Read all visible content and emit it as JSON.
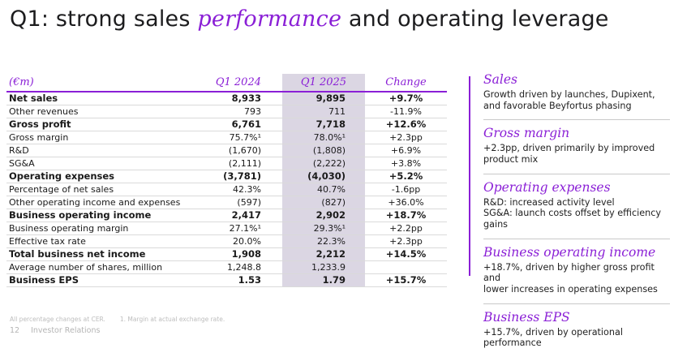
{
  "title": {
    "prefix": "Q1: strong sales ",
    "accent": "performance",
    "suffix": " and operating leverage"
  },
  "table": {
    "unit_label": "(€m)",
    "columns": [
      "Q1 2024",
      "Q1 2025",
      "Change"
    ],
    "rows": [
      {
        "label": "Net sales",
        "q1_2024": "8,933",
        "q1_2025": "9,895",
        "change": "+9.7%",
        "emphasis": true
      },
      {
        "label": "Other revenues",
        "q1_2024": "793",
        "q1_2025": "711",
        "change": "-11.9%",
        "emphasis": false
      },
      {
        "label": "Gross profit",
        "q1_2024": "6,761",
        "q1_2025": "7,718",
        "change": "+12.6%",
        "emphasis": true
      },
      {
        "label": "Gross margin",
        "q1_2024": "75.7%¹",
        "q1_2025": "78.0%¹",
        "change": "+2.3pp",
        "emphasis": false
      },
      {
        "label": "R&D",
        "q1_2024": "(1,670)",
        "q1_2025": "(1,808)",
        "change": "+6.9%",
        "emphasis": false
      },
      {
        "label": "SG&A",
        "q1_2024": "(2,111)",
        "q1_2025": "(2,222)",
        "change": "+3.8%",
        "emphasis": false
      },
      {
        "label": "Operating expenses",
        "q1_2024": "(3,781)",
        "q1_2025": "(4,030)",
        "change": "+5.2%",
        "emphasis": true
      },
      {
        "label": "Percentage of net sales",
        "q1_2024": "42.3%",
        "q1_2025": "40.7%",
        "change": "-1.6pp",
        "emphasis": false
      },
      {
        "label": "Other operating income and expenses",
        "q1_2024": "(597)",
        "q1_2025": "(827)",
        "change": "+36.0%",
        "emphasis": false
      },
      {
        "label": "Business operating income",
        "q1_2024": "2,417",
        "q1_2025": "2,902",
        "change": "+18.7%",
        "emphasis": true
      },
      {
        "label": "Business operating margin",
        "q1_2024": "27.1%¹",
        "q1_2025": "29.3%¹",
        "change": "+2.2pp",
        "emphasis": false
      },
      {
        "label": "Effective tax rate",
        "q1_2024": "20.0%",
        "q1_2025": "22.3%",
        "change": "+2.3pp",
        "emphasis": false
      },
      {
        "label": "Total business net income",
        "q1_2024": "1,908",
        "q1_2025": "2,212",
        "change": "+14.5%",
        "emphasis": true
      },
      {
        "label": "Average number of shares, million",
        "q1_2024": "1,248.8",
        "q1_2025": "1,233.9",
        "change": "",
        "emphasis": false
      },
      {
        "label": "Business EPS",
        "q1_2024": "1.53",
        "q1_2025": "1.79",
        "change": "+15.7%",
        "emphasis": true
      }
    ]
  },
  "sidebar": {
    "sections": [
      {
        "heading": "Sales",
        "body": "Growth driven by launches, Dupixent,\nand favorable Beyfortus phasing"
      },
      {
        "heading": "Gross margin",
        "body": "+2.3pp, driven primarily by improved\nproduct mix"
      },
      {
        "heading": "Operating expenses",
        "body": "R&D: increased activity level\nSG&A: launch costs offset by efficiency gains"
      },
      {
        "heading": "Business operating income",
        "body": "+18.7%, driven by higher gross profit and\nlower increases in operating expenses"
      },
      {
        "heading": "Business EPS",
        "body": "+15.7%, driven by operational performance"
      }
    ]
  },
  "footer": {
    "footnote_left": "All percentage changes at CER.",
    "footnote_right": "1. Margin at actual exchange rate.",
    "page_number": "12",
    "label": "Investor Relations"
  },
  "colors": {
    "accent_purple": "#8A1FD6",
    "highlight_column": "#DBD6E3",
    "row_line": "#DADADA",
    "sidebar_divider": "#C9C9C9",
    "footnote_gray": "#BDBDBD"
  }
}
